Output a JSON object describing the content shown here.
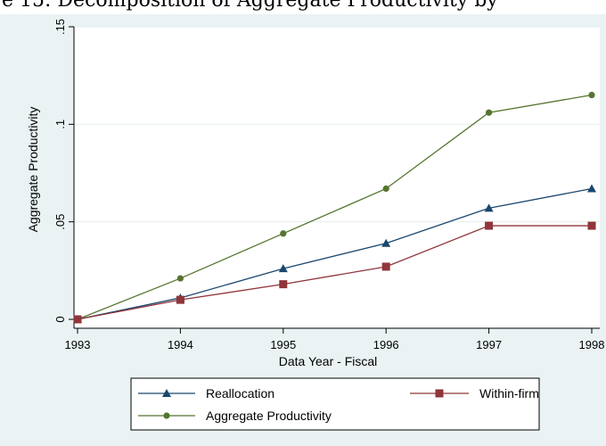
{
  "caption": "e 15: Decomposition of Aggregate Productivity by",
  "colors": {
    "background": "#eaf2f3",
    "plot_bg": "#ffffff",
    "grid": "#e6eef0",
    "reallocation": "#1a476f",
    "within_firm": "#90353b",
    "aggregate": "#55752f"
  },
  "chart_data": {
    "type": "line",
    "title": "",
    "xlabel": "Data Year - Fiscal",
    "ylabel": "Aggregate Productivity",
    "x": [
      1993,
      1994,
      1995,
      1996,
      1997,
      1998
    ],
    "x_tick_labels": [
      "1993",
      "1994",
      "1995",
      "1996",
      "1997",
      "1998"
    ],
    "xlim": [
      1993,
      1998
    ],
    "ylim": [
      0,
      0.15
    ],
    "y_ticks": [
      0,
      0.05,
      0.1,
      0.15
    ],
    "y_tick_labels": [
      "0",
      ".05",
      ".1",
      ".15"
    ],
    "grid": true,
    "legend_position": "bottom",
    "series": [
      {
        "name": "Reallocation",
        "marker": "triangle",
        "color": "#1a476f",
        "values": [
          0,
          0.011,
          0.026,
          0.039,
          0.057,
          0.067
        ]
      },
      {
        "name": "Within-firm",
        "marker": "square",
        "color": "#90353b",
        "values": [
          0,
          0.01,
          0.018,
          0.027,
          0.048,
          0.048
        ]
      },
      {
        "name": "Aggregate Productivity",
        "marker": "circle",
        "color": "#55752f",
        "values": [
          0,
          0.021,
          0.044,
          0.067,
          0.106,
          0.115
        ]
      }
    ]
  }
}
